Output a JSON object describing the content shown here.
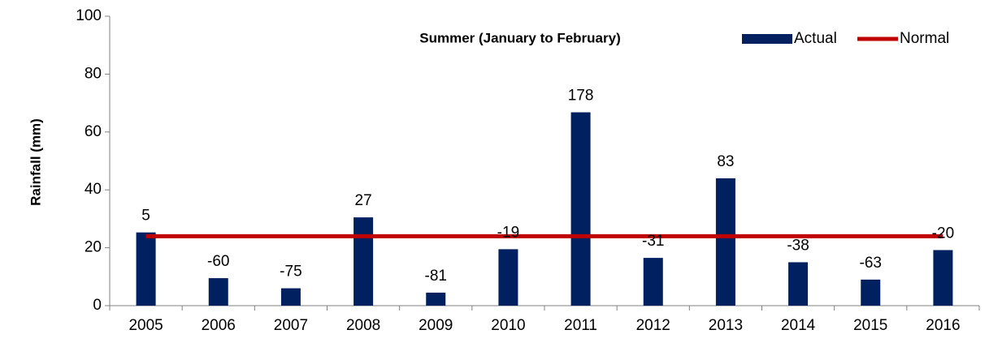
{
  "chart_data": {
    "type": "bar",
    "title": "Summer (January to February)",
    "y_label": "Rainfall (mm)",
    "categories": [
      "2005",
      "2006",
      "2007",
      "2008",
      "2009",
      "2010",
      "2011",
      "2012",
      "2013",
      "2014",
      "2015",
      "2016"
    ],
    "series": [
      {
        "name": "Actual",
        "type": "bar",
        "color": "#002060",
        "values": [
          25.3,
          9.5,
          6,
          30.5,
          4.5,
          19.5,
          66.8,
          16.5,
          44,
          15,
          9,
          19.2
        ]
      },
      {
        "name": "Normal",
        "type": "line",
        "color": "#c00000",
        "values": [
          24,
          24,
          24,
          24,
          24,
          24,
          24,
          24,
          24,
          24,
          24,
          24
        ]
      }
    ],
    "annotations": [
      5,
      -60,
      -75,
      27,
      -81,
      -19,
      178,
      -31,
      83,
      -38,
      -63,
      -20
    ],
    "ylim": [
      0,
      100
    ],
    "yticks": [
      0,
      20,
      40,
      60,
      80,
      100
    ],
    "grid": false,
    "legend": "top-right"
  }
}
